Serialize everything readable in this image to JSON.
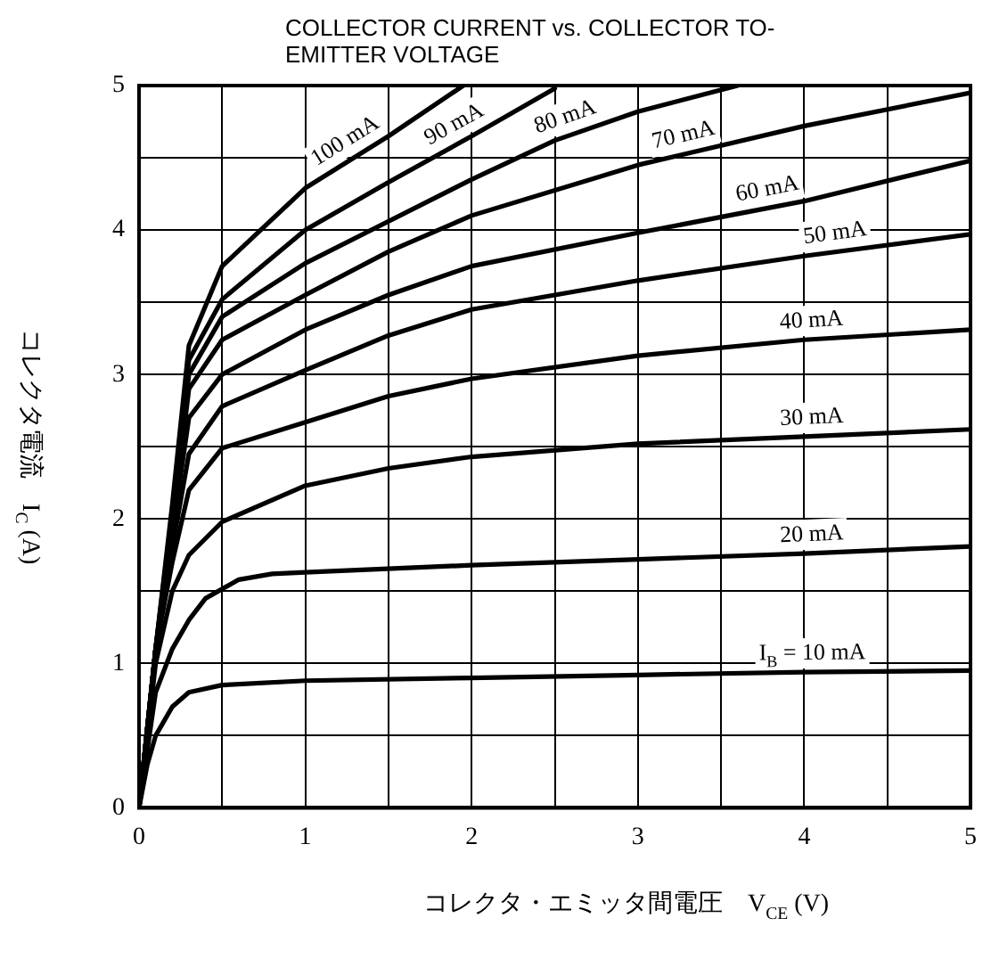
{
  "chart_data": {
    "type": "line",
    "title": "COLLECTOR CURRENT vs. COLLECTOR TO-EMITTER VOLTAGE",
    "xlabel": "コレクタ・エミッタ間電圧　V$_{CE}$ (V)",
    "ylabel": "コレクタ電流　I$_{C}$ (A)",
    "xlim": [
      0,
      5
    ],
    "ylim": [
      0,
      5
    ],
    "xticks": [
      0,
      {
        "value": 0.5,
        "label": null
      },
      1,
      {
        "value": 1.5,
        "label": null
      },
      2,
      {
        "value": 2.5,
        "label": null
      },
      3,
      {
        "value": 3.5,
        "label": null
      },
      4,
      {
        "value": 4.5,
        "label": null
      },
      5
    ],
    "yticks": [
      0,
      {
        "value": 0.5,
        "label": null
      },
      1,
      {
        "value": 1.5,
        "label": null
      },
      2,
      {
        "value": 2.5,
        "label": null
      },
      3,
      {
        "value": 3.5,
        "label": null
      },
      4,
      {
        "value": 4.5,
        "label": null
      },
      5
    ],
    "grid": true,
    "legend": false,
    "marker": "none",
    "line_style": "solid",
    "series": [
      {
        "name": "I$_{B}$ = 10 mA",
        "color": "#000000",
        "x": [
          0,
          0.05,
          0.1,
          0.2,
          0.3,
          0.5,
          1,
          2,
          3,
          4,
          5
        ],
        "values": [
          0,
          0.3,
          0.5,
          0.7,
          0.8,
          0.85,
          0.88,
          0.9,
          0.92,
          0.94,
          0.95
        ]
      },
      {
        "name": "20 mA",
        "color": "#000000",
        "x": [
          0,
          0.1,
          0.2,
          0.3,
          0.4,
          0.6,
          0.8,
          1,
          2,
          3,
          4,
          5
        ],
        "values": [
          0,
          0.8,
          1.1,
          1.3,
          1.45,
          1.58,
          1.62,
          1.63,
          1.68,
          1.72,
          1.76,
          1.81
        ]
      },
      {
        "name": "30 mA",
        "color": "#000000",
        "x": [
          0,
          0.1,
          0.2,
          0.3,
          0.5,
          1,
          1.5,
          2,
          3,
          4,
          5
        ],
        "values": [
          0,
          1.0,
          1.5,
          1.75,
          1.98,
          2.23,
          2.35,
          2.43,
          2.52,
          2.57,
          2.62
        ]
      },
      {
        "name": "40 mA",
        "color": "#000000",
        "x": [
          0,
          0.1,
          0.2,
          0.3,
          0.5,
          1,
          1.5,
          2,
          3,
          4,
          5
        ],
        "values": [
          0,
          1.1,
          1.7,
          2.2,
          2.49,
          2.67,
          2.85,
          2.97,
          3.13,
          3.24,
          3.31
        ]
      },
      {
        "name": "50 mA",
        "color": "#000000",
        "x": [
          0,
          0.1,
          0.2,
          0.3,
          0.5,
          1,
          1.5,
          2,
          3,
          4,
          5
        ],
        "values": [
          0,
          1.1,
          1.8,
          2.45,
          2.78,
          3.03,
          3.27,
          3.45,
          3.65,
          3.82,
          3.97
        ]
      },
      {
        "name": "60 mA",
        "color": "#000000",
        "x": [
          0,
          0.1,
          0.2,
          0.3,
          0.5,
          1,
          1.5,
          2,
          3,
          4,
          5
        ],
        "values": [
          0,
          1.1,
          1.9,
          2.7,
          3.0,
          3.31,
          3.55,
          3.75,
          3.98,
          4.2,
          4.48
        ]
      },
      {
        "name": "70 mA",
        "color": "#000000",
        "x": [
          0,
          0.1,
          0.2,
          0.3,
          0.5,
          1,
          1.5,
          2,
          3,
          4,
          5
        ],
        "values": [
          0,
          1.1,
          1.95,
          2.9,
          3.24,
          3.55,
          3.85,
          4.1,
          4.45,
          4.72,
          4.95
        ]
      },
      {
        "name": "80 mA",
        "color": "#000000",
        "x": [
          0,
          0.1,
          0.2,
          0.3,
          0.5,
          1,
          2,
          2.5,
          3,
          3.6
        ],
        "values": [
          0,
          1.1,
          2.0,
          3.0,
          3.4,
          3.77,
          4.35,
          4.62,
          4.82,
          5.0
        ]
      },
      {
        "name": "90 mA",
        "color": "#000000",
        "x": [
          0,
          0.1,
          0.2,
          0.3,
          0.5,
          1,
          1.5,
          2,
          2.5
        ],
        "values": [
          0,
          1.1,
          2.05,
          3.1,
          3.52,
          4.0,
          4.33,
          4.65,
          4.98
        ]
      },
      {
        "name": "100 mA",
        "color": "#000000",
        "x": [
          0,
          0.1,
          0.2,
          0.3,
          0.5,
          1,
          1.5,
          1.95
        ],
        "values": [
          0,
          1.1,
          2.1,
          3.2,
          3.75,
          4.29,
          4.65,
          5.0
        ]
      }
    ]
  }
}
